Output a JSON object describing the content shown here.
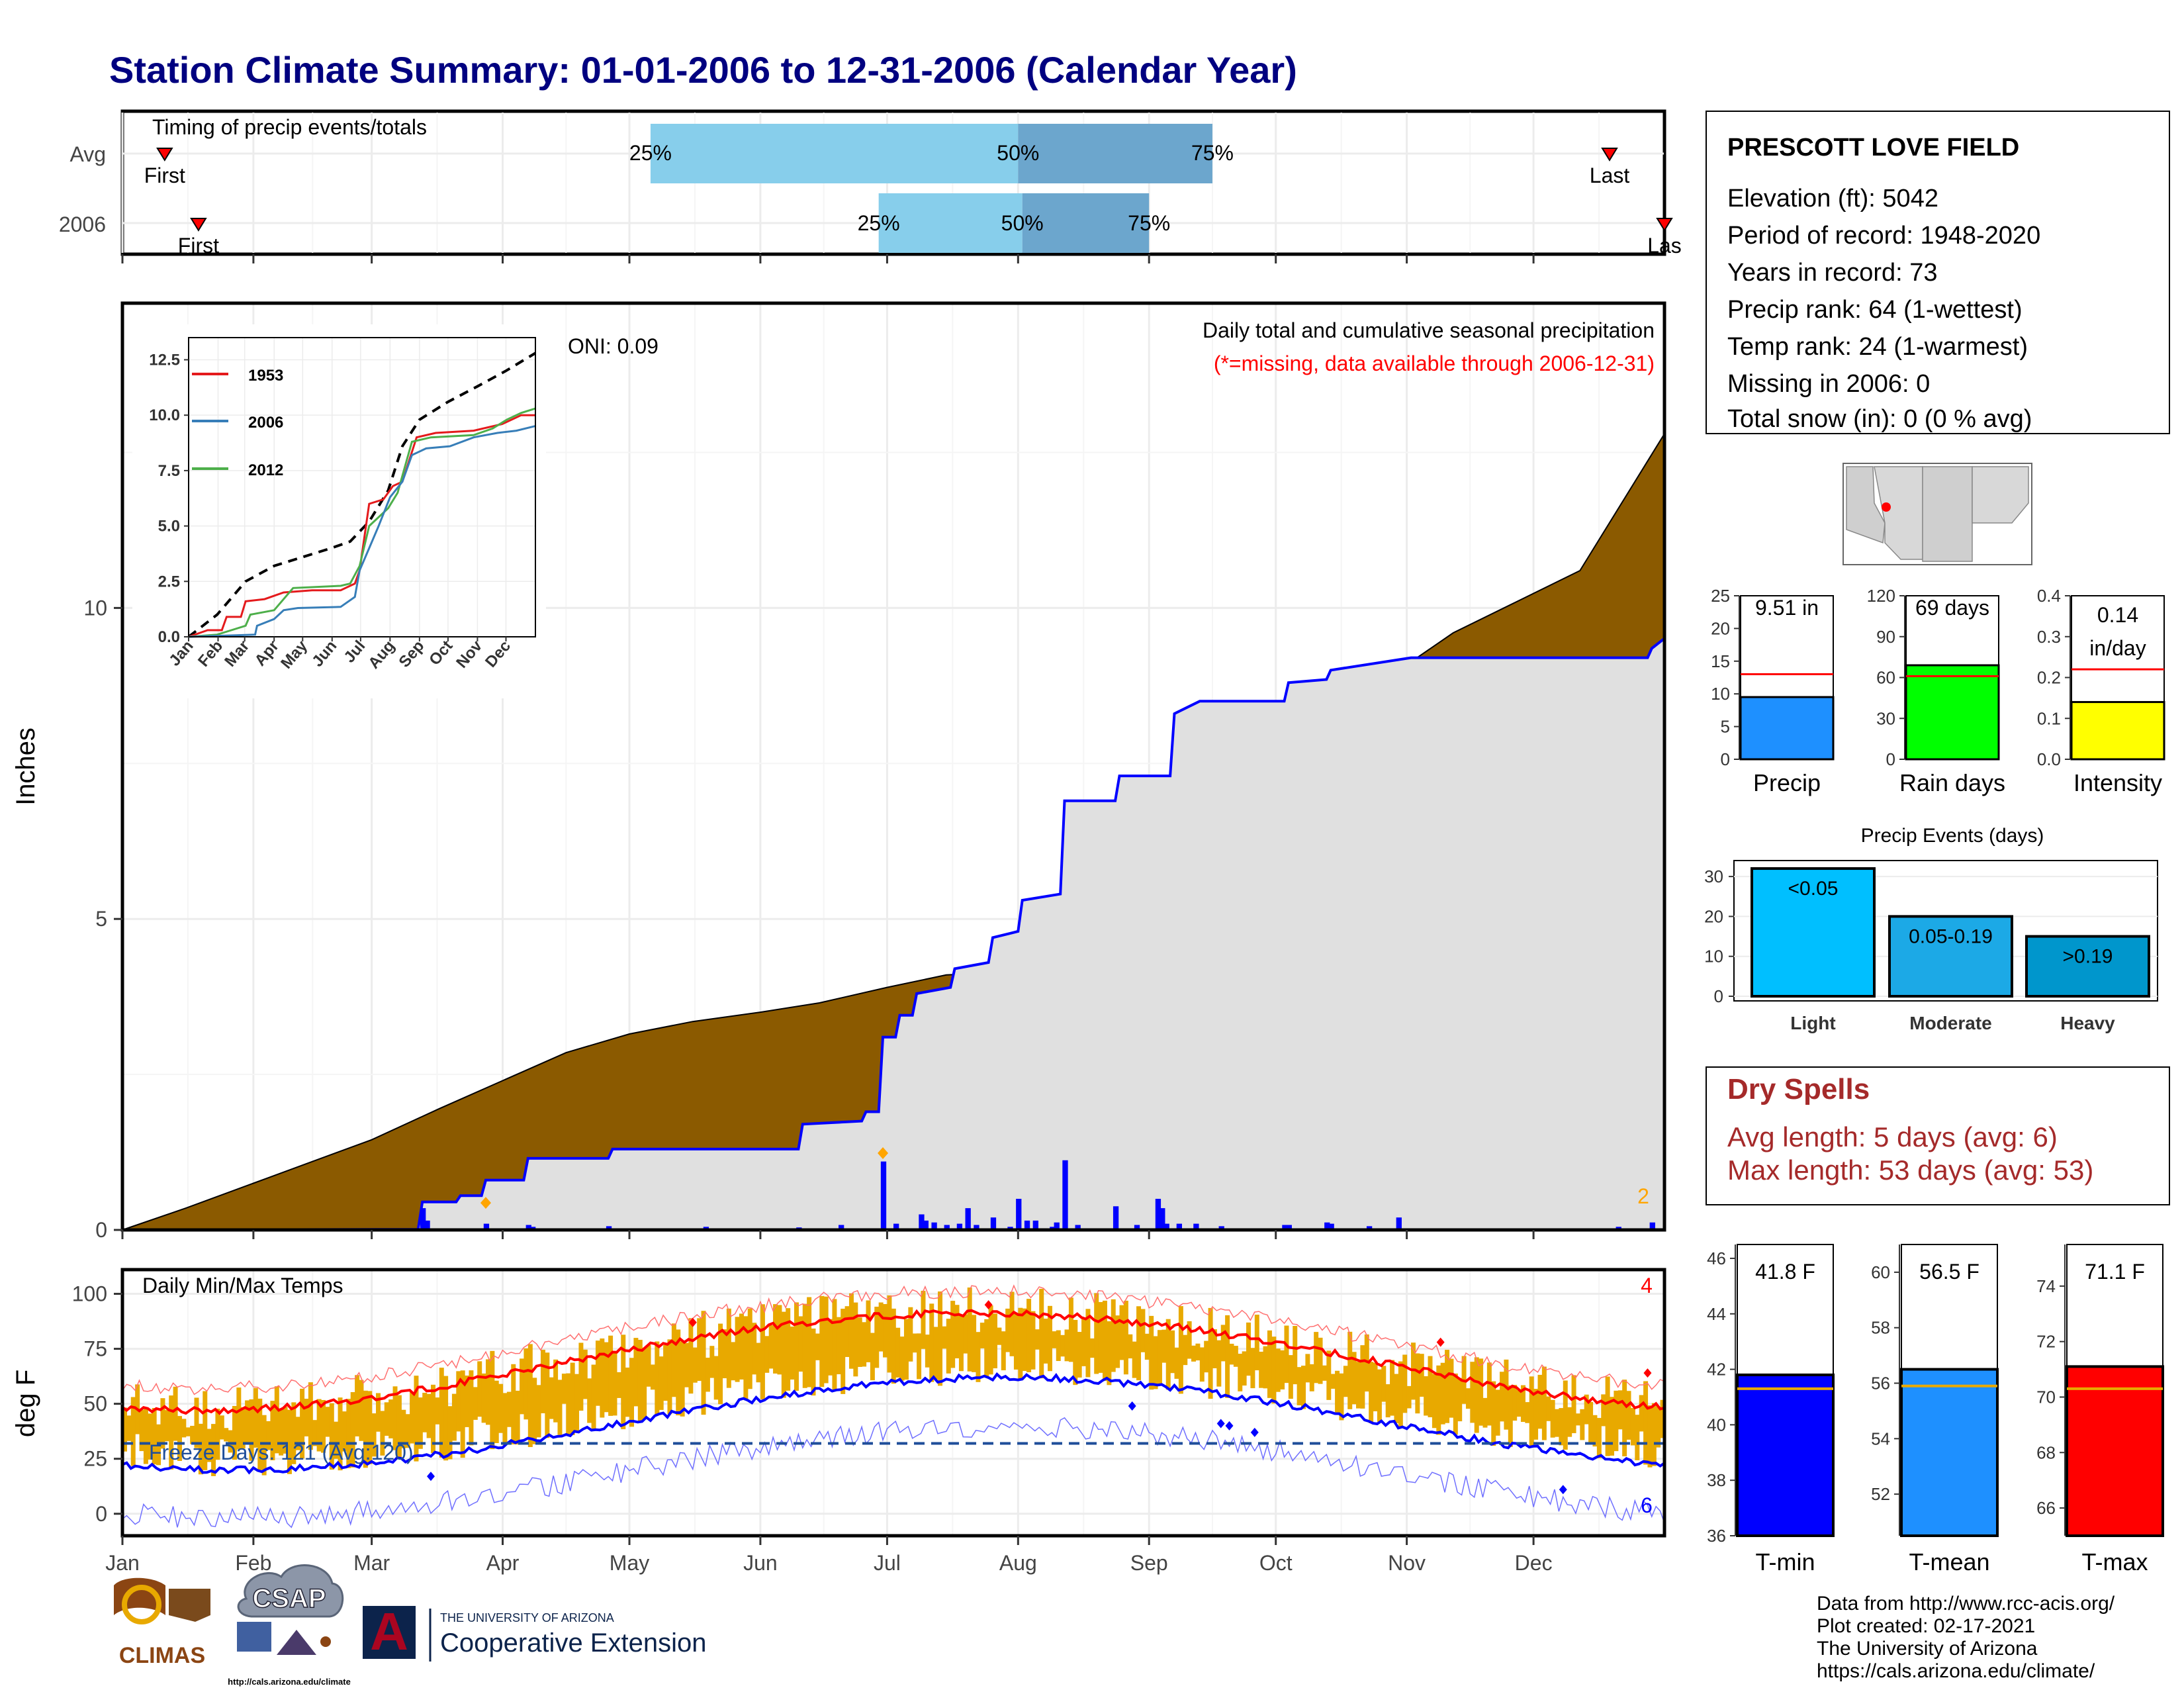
{
  "title": "Station Climate Summary: 01-01-2006 to 12-31-2006 (Calendar Year)",
  "colors": {
    "title": "#000080",
    "precip_fill": "#8B5A00",
    "normal_fill": "#E0E0E0",
    "obs_line": "#0000FF",
    "temp_bar": "#E8A900",
    "tmax_line": "#FF0000",
    "tmin_line": "#0000FF",
    "dry_spells": "#A52A2A",
    "timing_light": "#87CEEB",
    "timing_dark": "#6CA6CD"
  },
  "months": [
    "Jan",
    "Feb",
    "Mar",
    "Apr",
    "May",
    "Jun",
    "Jul",
    "Aug",
    "Sep",
    "Oct",
    "Nov",
    "Dec"
  ],
  "timing": {
    "label": "Timing of precip events/totals",
    "rows": [
      {
        "name": "Avg",
        "first_day": 10,
        "q25_day": 125,
        "q50_day": 212,
        "q75_day": 258,
        "last_day": 352,
        "first_label": "First",
        "last_label": "Last"
      },
      {
        "name": "2006",
        "first_day": 18,
        "q25_day": 179,
        "q50_day": 213,
        "q75_day": 243,
        "last_day": 365,
        "first_label": "First",
        "last_label": "Las"
      }
    ],
    "pct_labels": [
      "25%",
      "50%",
      "75%"
    ]
  },
  "precip_panel": {
    "ylabel": "Inches",
    "yticks": [
      0,
      5,
      10
    ],
    "oni": "ONI: 0.09",
    "subtitle": "Daily total and cumulative seasonal precipitation",
    "missing_note": "(*=missing, data available through 2006-12-31)",
    "count_label": "2"
  },
  "inset": {
    "yticks": [
      "0.0",
      "2.5",
      "5.0",
      "7.5",
      "10.0",
      "12.5"
    ],
    "xticks": [
      "Jan",
      "Feb",
      "Mar",
      "Apr",
      "May",
      "Jun",
      "Jul",
      "Aug",
      "Sep",
      "Oct",
      "Nov",
      "Dec"
    ],
    "legend": [
      {
        "name": "1953",
        "color": "#E41A1C"
      },
      {
        "name": "2006",
        "color": "#377EB8"
      },
      {
        "name": "2012",
        "color": "#4DAF4A"
      }
    ]
  },
  "temp_panel": {
    "ylabel": "deg F",
    "label": "Daily Min/Max Temps",
    "yticks": [
      0,
      25,
      50,
      75,
      100
    ],
    "freeze": "Freeze Days: 121 (Avg:120)",
    "freeze_line": 32,
    "count_hot": "4",
    "count_cold": "6"
  },
  "station": {
    "name": "PRESCOTT LOVE FIELD",
    "lines": [
      "Elevation (ft): 5042",
      "Period of record: 1948-2020",
      "Years in record: 73",
      "Precip rank: 64 (1-wettest)",
      "Temp rank: 24 (1-warmest)",
      "Missing in 2006: 0",
      "Total snow (in): 0 (0 % avg)"
    ]
  },
  "mini_bars": [
    {
      "title": "Precip",
      "value_label": "9.51 in",
      "value": 9.51,
      "avg": 13.0,
      "max": 25,
      "ticks": [
        "0",
        "5",
        "10",
        "15",
        "20",
        "25"
      ],
      "color": "#1E90FF"
    },
    {
      "title": "Rain days",
      "value_label": "69 days",
      "value": 69,
      "avg": 61,
      "max": 120,
      "ticks": [
        "0",
        "30",
        "60",
        "90",
        "120"
      ],
      "color": "#00FF00"
    },
    {
      "title": "Intensity",
      "value_label": "0.14",
      "value_label2": "in/day",
      "value": 0.14,
      "avg": 0.22,
      "max": 0.4,
      "ticks": [
        "0.0",
        "0.1",
        "0.2",
        "0.3",
        "0.4"
      ],
      "color": "#FFFF00"
    }
  ],
  "precip_events": {
    "title": "Precip Events (days)",
    "yticks": [
      "0",
      "10",
      "20",
      "30"
    ],
    "bars": [
      {
        "label": "Light",
        "text": "<0.05",
        "value": 32,
        "color": "#00BFFF"
      },
      {
        "label": "Moderate",
        "text": "0.05-0.19",
        "value": 20,
        "color": "#1CA9E6"
      },
      {
        "label": "Heavy",
        "text": ">0.19",
        "value": 15,
        "color": "#0096CC"
      }
    ]
  },
  "dry_spells": {
    "title": "Dry Spells",
    "avg": "Avg length: 5 days (avg: 6)",
    "max": "Max length: 53 days (avg: 53)"
  },
  "temp_bars": [
    {
      "title": "T-min",
      "value_label": "41.8 F",
      "value": 41.8,
      "avg": 41.3,
      "min": 36,
      "max": 46.5,
      "ticks": [
        "36",
        "38",
        "40",
        "42",
        "44",
        "46"
      ],
      "color": "#0000FF"
    },
    {
      "title": "T-mean",
      "value_label": "56.5 F",
      "value": 56.5,
      "avg": 55.9,
      "min": 50.5,
      "max": 61,
      "ticks": [
        "52",
        "54",
        "56",
        "58",
        "60"
      ],
      "color": "#1E90FF"
    },
    {
      "title": "T-max",
      "value_label": "71.1 F",
      "value": 71.1,
      "avg": 70.3,
      "min": 65,
      "max": 75.5,
      "ticks": [
        "66",
        "68",
        "70",
        "72",
        "74"
      ],
      "color": "#FF0000"
    }
  ],
  "footer": {
    "credits": [
      "Data from http://www.rcc-acis.org/",
      "Plot created: 02-17-2021",
      "The University of Arizona",
      "https://cals.arizona.edu/climate/"
    ],
    "climas": "CLIMAS",
    "csap": "CSAP",
    "csap_url": "http://cals.arizona.edu/climate",
    "ua_small": "THE UNIVERSITY OF ARIZONA",
    "ua_large": "Cooperative Extension",
    "ua_letter": "A"
  }
}
